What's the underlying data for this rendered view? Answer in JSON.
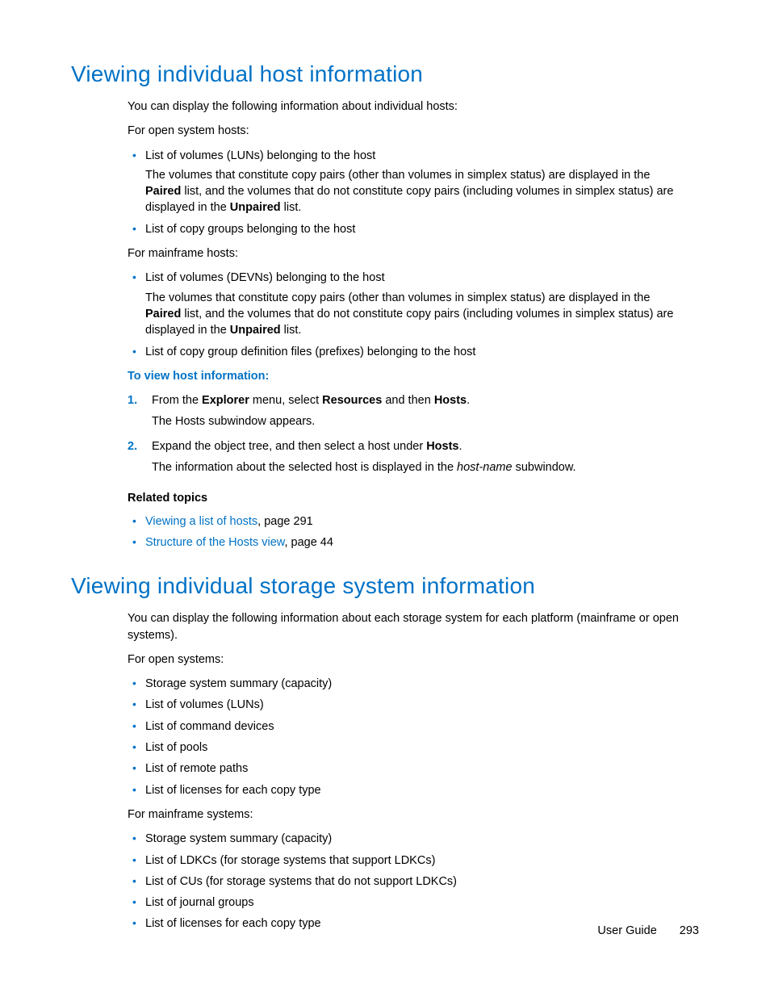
{
  "section1": {
    "title": "Viewing individual host information",
    "intro": "You can display the following information about individual hosts:",
    "open_label": "For open system hosts:",
    "open_b1_lead": "List of volumes (LUNs) belonging to the host",
    "open_b1_p1a": "The volumes that constitute copy pairs (other than volumes in simplex status) are displayed in the ",
    "open_b1_bold1": "Paired",
    "open_b1_p1b": " list, and the volumes that do not constitute copy pairs (including volumes in simplex status) are displayed in the ",
    "open_b1_bold2": "Unpaired",
    "open_b1_p1c": " list.",
    "open_b2": "List of copy groups belonging to the host",
    "mf_label": "For mainframe hosts:",
    "mf_b1_lead": "List of volumes (DEVNs) belonging to the host",
    "mf_b1_p1a": "The volumes that constitute copy pairs (other than volumes in simplex status) are displayed in the ",
    "mf_b1_bold1": "Paired",
    "mf_b1_p1b": " list, and the volumes that do not constitute copy pairs (including volumes in simplex status) are displayed in the ",
    "mf_b1_bold2": "Unpaired",
    "mf_b1_p1c": " list.",
    "mf_b2": "List of copy group definition files (prefixes) belonging to the host",
    "proc_head": "To view host information:",
    "s1_a": "From the ",
    "s1_b1": "Explorer",
    "s1_b": " menu, select ",
    "s1_b2": "Resources",
    "s1_c": " and then ",
    "s1_b3": "Hosts",
    "s1_d": ".",
    "s1_sub": "The Hosts subwindow appears.",
    "s2_a": "Expand the object tree, and then select a host under ",
    "s2_b1": "Hosts",
    "s2_b": ".",
    "s2_sub_a": "The information about the selected host is displayed in the ",
    "s2_sub_i": "host-name",
    "s2_sub_b": " subwindow.",
    "rel_head": "Related topics",
    "rel1_link": "Viewing a list of hosts",
    "rel1_tail": ", page 291",
    "rel2_link": "Structure of the Hosts view",
    "rel2_tail": ", page 44"
  },
  "section2": {
    "title": "Viewing individual storage system information",
    "intro": "You can display the following information about each storage system for each platform (mainframe or open systems).",
    "open_label": "For open systems:",
    "open_items": [
      "Storage system summary (capacity)",
      "List of volumes (LUNs)",
      "List of command devices",
      "List of pools",
      "List of remote paths",
      "List of licenses for each copy type"
    ],
    "mf_label": "For mainframe systems:",
    "mf_items": [
      "Storage system summary (capacity)",
      "List of LDKCs (for storage systems that support LDKCs)",
      "List of CUs (for storage systems that do not support LDKCs)",
      "List of journal groups",
      "List of licenses for each copy type"
    ]
  },
  "footer": {
    "label": "User Guide",
    "page": "293"
  }
}
